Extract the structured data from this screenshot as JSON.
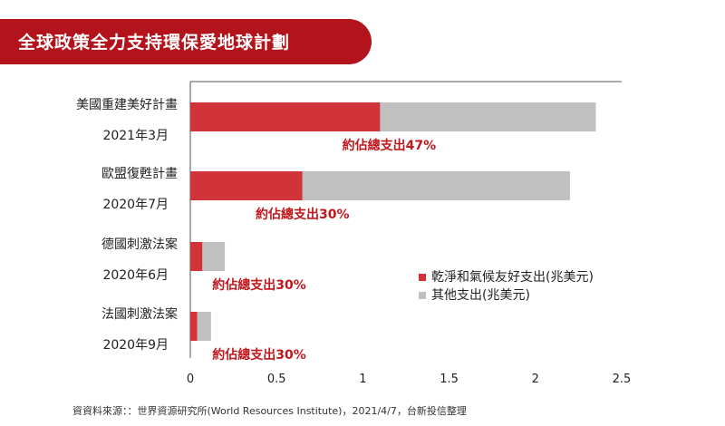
{
  "header": {
    "title": "全球政策全力支持環保愛地球計劃"
  },
  "source_note": "資資料來源：：世界資源研究所(World Resources Institute)，2021/4/7，台新投信整理",
  "colors": {
    "banner": "#b3141c",
    "clean": "#d13438",
    "other": "#c0c0c0",
    "annotation": "#c0171d"
  },
  "chart_data": {
    "type": "bar",
    "orientation": "horizontal",
    "stacked": true,
    "categories": [
      {
        "name": "美國重建美好計畫",
        "date": "2021年3月",
        "note": "約佔總支出47%"
      },
      {
        "name": "歐盟復甦計畫",
        "date": "2020年7月",
        "note": "約佔總支出30%"
      },
      {
        "name": "德國刺激法案",
        "date": "2020年6月",
        "note": "約佔總支出30%"
      },
      {
        "name": "法國刺激法案",
        "date": "2020年9月",
        "note": "約佔總支出30%"
      }
    ],
    "series": [
      {
        "name": "乾淨和氣候友好支出(兆美元)",
        "color": "#d13438",
        "values": [
          1.1,
          0.65,
          0.07,
          0.04
        ]
      },
      {
        "name": "其他支出(兆美元)",
        "color": "#c0c0c0",
        "values": [
          1.25,
          1.55,
          0.13,
          0.08
        ]
      }
    ],
    "xlim": [
      0,
      2.5
    ],
    "xticks": [
      "0",
      "0.5",
      "1",
      "1.5",
      "2",
      "2.5"
    ],
    "xlabel": "",
    "ylabel": "",
    "legend": "right-middle",
    "grid": false
  }
}
